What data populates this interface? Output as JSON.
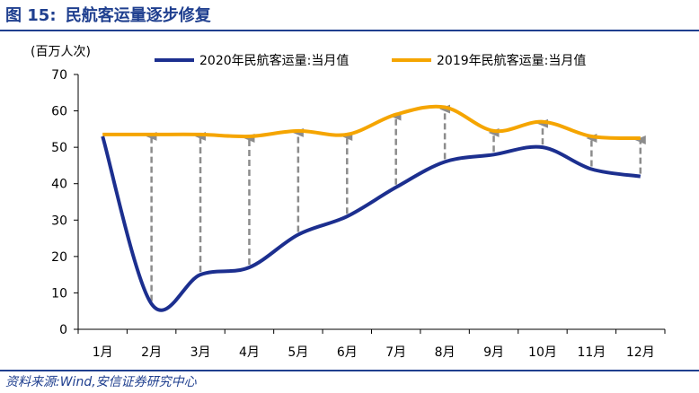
{
  "figure": {
    "label": "图",
    "number": "15:",
    "title": "民航客运量逐步修复",
    "source": "资料来源:Wind,安信证券研究中心"
  },
  "colors": {
    "title": "#1f3f8f",
    "series_2020": "#1c2f8f",
    "series_2019": "#f5a500",
    "arrow": "#8c8c8c"
  },
  "chart_data": {
    "type": "line",
    "unit_label": "(百万人次)",
    "categories": [
      "1月",
      "2月",
      "3月",
      "4月",
      "5月",
      "6月",
      "7月",
      "8月",
      "9月",
      "10月",
      "11月",
      "12月"
    ],
    "ylim": [
      0,
      70
    ],
    "yticks": [
      0,
      10,
      20,
      30,
      40,
      50,
      60,
      70
    ],
    "grid": false,
    "legend_position": "top",
    "series": [
      {
        "name": "2020年民航客运量:当月值",
        "values": [
          53,
          7,
          15,
          17,
          26,
          31,
          39,
          46,
          48,
          50,
          44,
          42
        ]
      },
      {
        "name": "2019年民航客运量:当月值",
        "values": [
          53.5,
          53.5,
          53.5,
          53,
          54.5,
          53.5,
          59,
          61,
          54.5,
          57,
          53,
          52.5
        ]
      }
    ],
    "annotations": "dashed grey arrows from 2020 value up to 2019 value for each month"
  }
}
